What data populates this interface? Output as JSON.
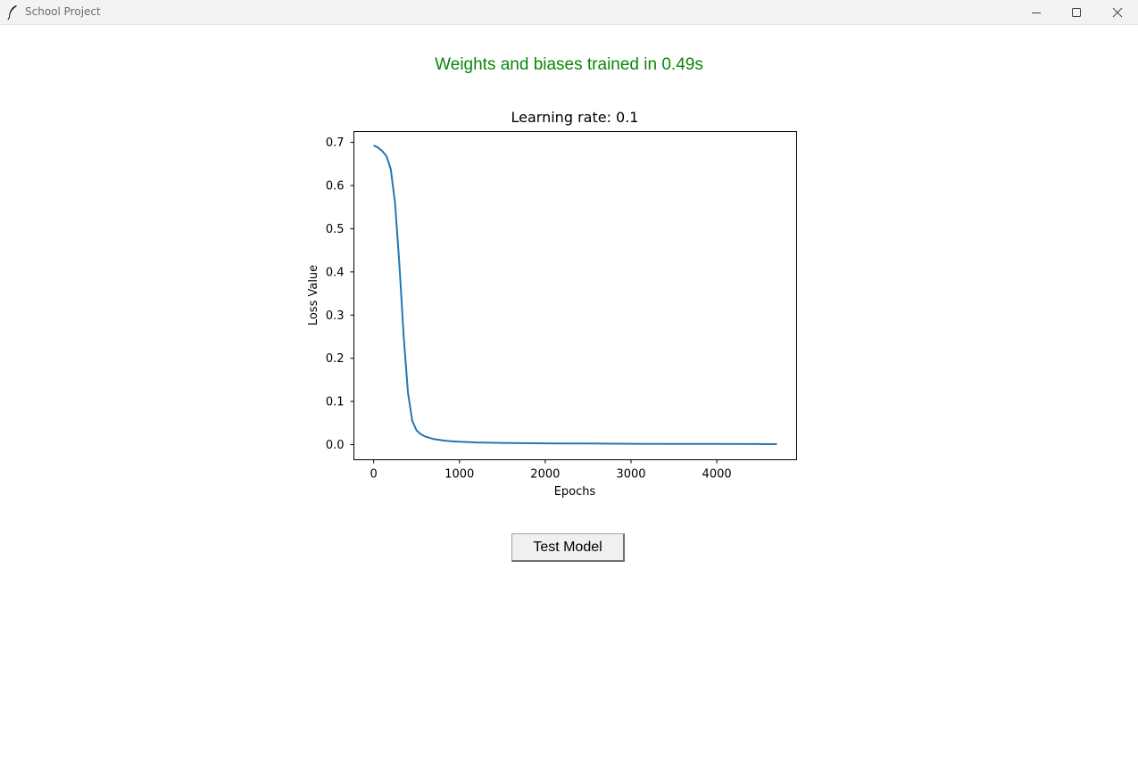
{
  "window": {
    "title": "School Project",
    "icon": "feather-icon",
    "controls": [
      "minimize-icon",
      "maximize-icon",
      "close-icon"
    ]
  },
  "status": {
    "message": "Weights and biases trained in 0.49s",
    "color": "#0a860a"
  },
  "chart_data": {
    "type": "line",
    "title": "Learning rate: 0.1",
    "xlabel": "Epochs",
    "ylabel": "Loss Value",
    "xlim": [
      -230,
      4930
    ],
    "ylim": [
      -0.035,
      0.725
    ],
    "xticks": [
      0,
      1000,
      2000,
      3000,
      4000
    ],
    "yticks": [
      0.0,
      0.1,
      0.2,
      0.3,
      0.4,
      0.5,
      0.6,
      0.7
    ],
    "ytick_labels": [
      "0.0",
      "0.1",
      "0.2",
      "0.3",
      "0.4",
      "0.5",
      "0.6",
      "0.7"
    ],
    "grid": false,
    "line_color": "#1f77b4",
    "series": [
      {
        "x": [
          0,
          50,
          100,
          150,
          200,
          250,
          300,
          350,
          400,
          450,
          500,
          550,
          600,
          700,
          800,
          900,
          1000,
          1200,
          1500,
          2000,
          2500,
          3000,
          3500,
          4000,
          4500,
          4700
        ],
        "y": [
          0.693,
          0.688,
          0.68,
          0.668,
          0.638,
          0.56,
          0.42,
          0.25,
          0.12,
          0.055,
          0.033,
          0.024,
          0.019,
          0.013,
          0.01,
          0.008,
          0.007,
          0.005,
          0.004,
          0.003,
          0.0025,
          0.002,
          0.0018,
          0.0015,
          0.0013,
          0.0012
        ]
      }
    ]
  },
  "actions": {
    "test_model_label": "Test Model"
  }
}
